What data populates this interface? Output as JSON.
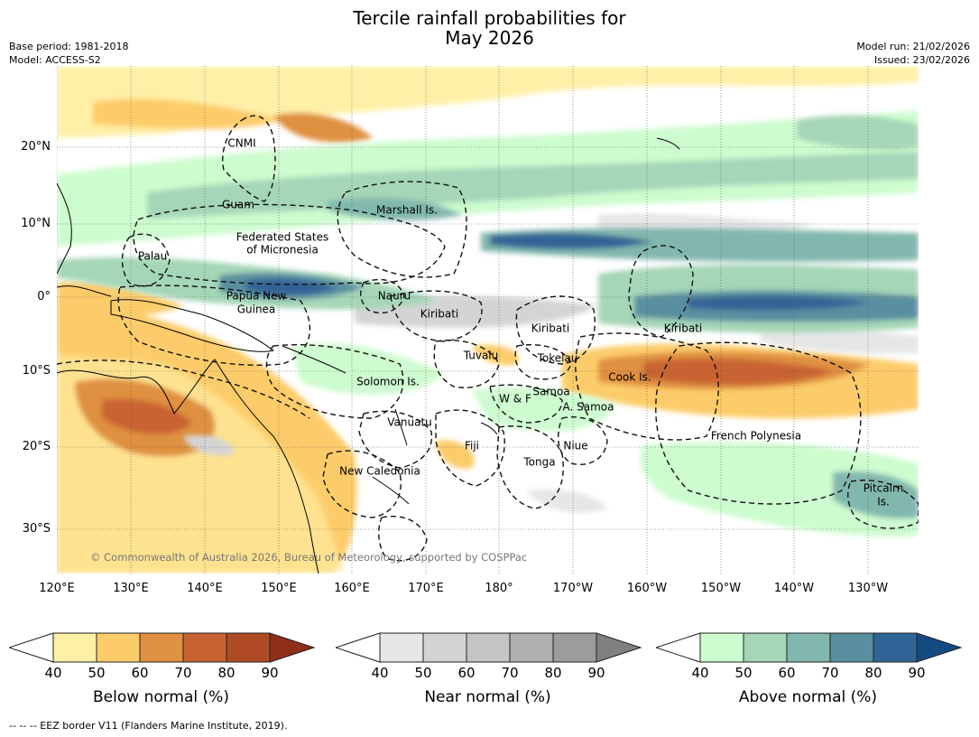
{
  "title": {
    "line1": "Tercile rainfall probabilities for",
    "line2": "May 2026"
  },
  "meta": {
    "base_period": "Base period: 1981-2018",
    "model": "Model: ACCESS-S2",
    "model_run": "Model run: 21/02/2026",
    "issued": "Issued: 23/02/2026"
  },
  "axes": {
    "lat_labels": [
      "20°N",
      "10°N",
      "0°",
      "10°S",
      "20°S",
      "30°S"
    ],
    "lon_labels": [
      "120°E",
      "130°E",
      "140°E",
      "150°E",
      "160°E",
      "170°E",
      "180°",
      "170°W",
      "160°W",
      "150°W",
      "140°W",
      "130°W"
    ]
  },
  "map_labels": {
    "cnmi": "CNMI",
    "guam": "Guam",
    "marshall": "Marshall Is.",
    "fsm_1": "Federated States",
    "fsm_2": "of Micronesia",
    "palau": "Palau",
    "png_1": "Papua New",
    "png_2": "Guinea",
    "nauru": "Nauru",
    "kiribati_w": "Kiribati",
    "kiribati_c": "Kiribati",
    "kiribati_e": "Kiribati",
    "tuvalu": "Tuvalu",
    "tokelau": "Tokelau",
    "cook": "Cook Is.",
    "solomon": "Solomon Is.",
    "wf": "W & F",
    "samoa": "Samoa",
    "asamoa": "A. Samoa",
    "vanuatu": "Vanuatu",
    "fiji": "Fiji",
    "niue": "Niue",
    "tonga": "Tonga",
    "french_polynesia": "French Polynesia",
    "new_caledonia": "New Caledonia",
    "pitcairn_1": "Pitcairn",
    "pitcairn_2": "Is."
  },
  "copyright": "© Commonwealth of Australia 2026, Bureau of Meteorology, supported by COSPPac",
  "colorbars": {
    "ticks": [
      "40",
      "50",
      "60",
      "70",
      "80",
      "90"
    ],
    "below": {
      "label": "Below normal (%)",
      "colors": [
        "#ffffff",
        "#fff0a8",
        "#fdcc6a",
        "#df9040",
        "#c96332",
        "#b04a25",
        "#8e3018"
      ]
    },
    "near": {
      "label": "Near normal (%)",
      "colors": [
        "#ffffff",
        "#e6e6e6",
        "#d4d4d4",
        "#c4c4c4",
        "#b0b0b0",
        "#9c9c9c",
        "#808080"
      ]
    },
    "above": {
      "label": "Above normal (%)",
      "colors": [
        "#ffffff",
        "#cdfccf",
        "#a4d6b7",
        "#82b7ad",
        "#5a8fa0",
        "#316496",
        "#144a82"
      ]
    }
  },
  "footer": "--  --  -- EEZ border V11 (Flanders Marine Institute, 2019)."
}
